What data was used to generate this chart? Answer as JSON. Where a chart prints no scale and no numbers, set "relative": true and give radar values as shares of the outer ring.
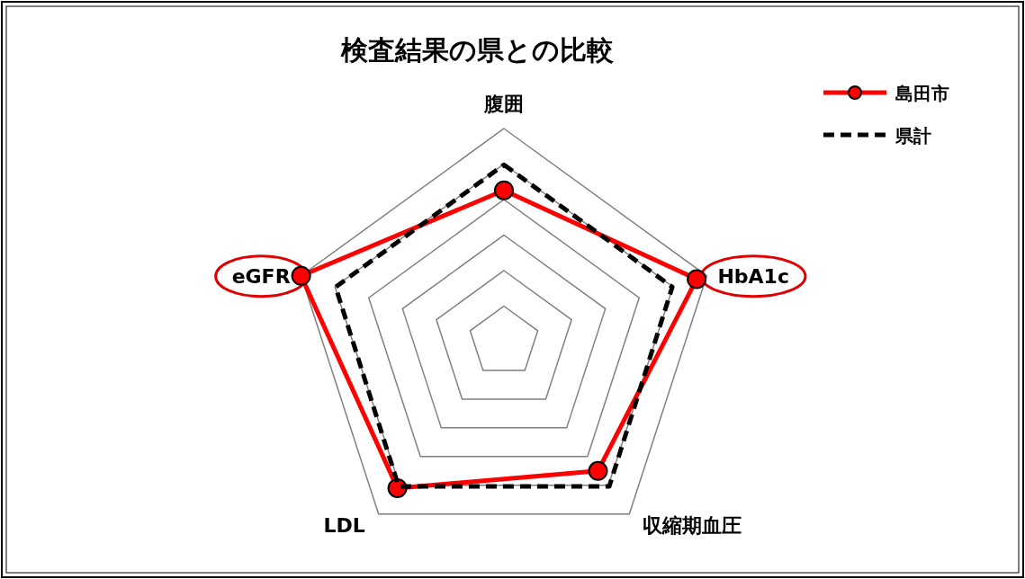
{
  "chart_data": {
    "type": "radar",
    "title": "検査結果の県との比較",
    "relative": true,
    "grid": true,
    "legend": "top right",
    "categories": [
      "腹囲",
      "HbA1c",
      "収縮期血圧",
      "LDL",
      "eGFR"
    ],
    "series": [
      {
        "name": "島田市",
        "color": "#ff0000",
        "marker": "circle",
        "line_style": "solid",
        "values": [
          0.71,
          0.95,
          0.75,
          0.85,
          1.0
        ]
      },
      {
        "name": "県計",
        "color": "#000000",
        "marker": "none",
        "line_style": "dashed",
        "values": [
          0.83,
          0.83,
          0.84,
          0.84,
          0.83
        ]
      }
    ]
  }
}
